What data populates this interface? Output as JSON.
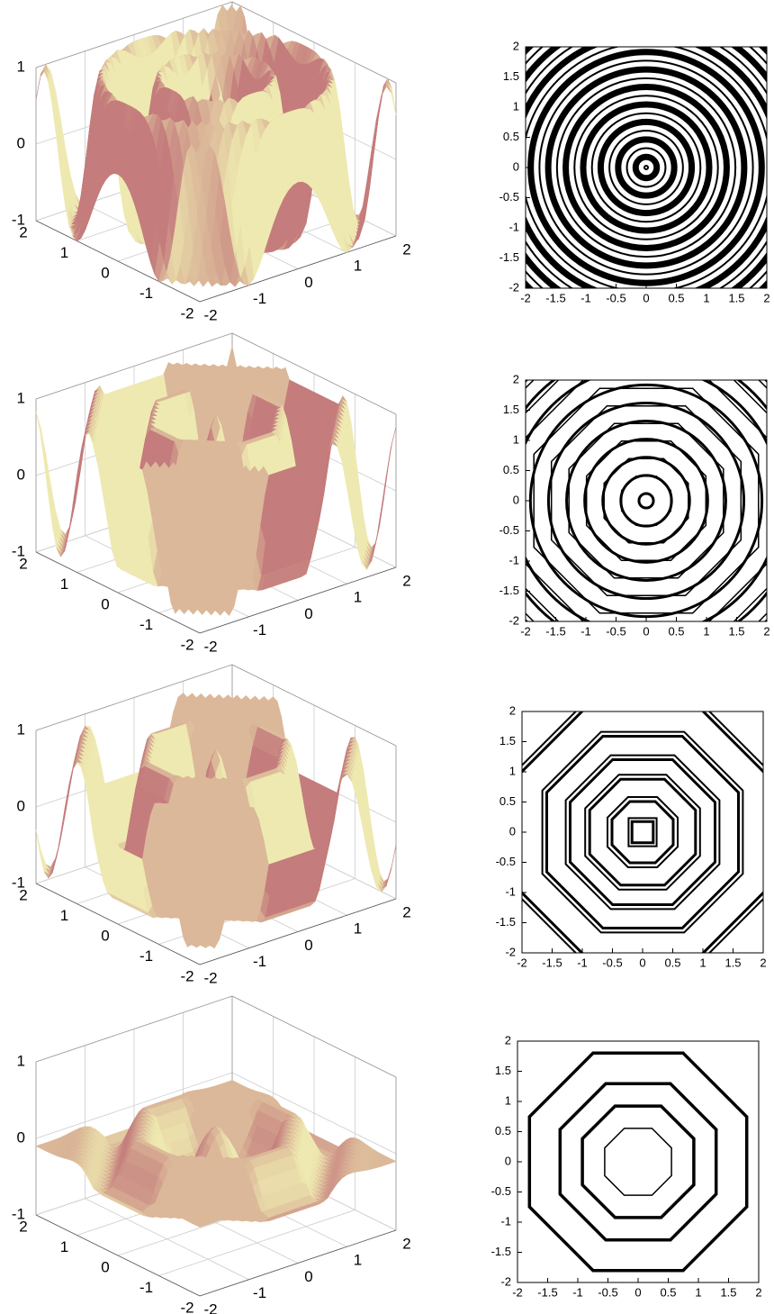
{
  "chart_data": [
    {
      "type": "surface3d",
      "xlim": [
        -2,
        2
      ],
      "ylim": [
        -2,
        2
      ],
      "zlim": [
        -1,
        1
      ],
      "xticks": [
        2,
        1,
        0,
        -1,
        -2
      ],
      "yticks": [
        -2,
        -1,
        0,
        1,
        2
      ],
      "zticks": [
        -1,
        0,
        1
      ],
      "low_color": "#c47c7c",
      "high_color": "#eee9b0"
    },
    {
      "type": "contour",
      "xlim": [
        -2,
        2
      ],
      "ylim": [
        -2,
        2
      ],
      "xticks": [
        -2,
        -1.5,
        -1,
        -0.5,
        0,
        0.5,
        1,
        1.5,
        2
      ],
      "yticks": [
        -2,
        -1.5,
        -1,
        -0.5,
        0,
        0.5,
        1,
        1.5,
        2
      ],
      "color": "#000000"
    },
    {
      "type": "surface3d",
      "xlim": [
        -2,
        2
      ],
      "ylim": [
        -2,
        2
      ],
      "zlim": [
        -1,
        1
      ],
      "xticks": [
        2,
        1,
        0,
        -1,
        -2
      ],
      "yticks": [
        -2,
        -1,
        0,
        1,
        2
      ],
      "zticks": [
        -1,
        0,
        1
      ],
      "low_color": "#c47c7c",
      "high_color": "#eee9b0"
    },
    {
      "type": "contour",
      "xlim": [
        -2,
        2
      ],
      "ylim": [
        -2,
        2
      ],
      "xticks": [
        -2,
        -1.5,
        -1,
        -0.5,
        0,
        0.5,
        1,
        1.5,
        2
      ],
      "yticks": [
        -2,
        -1.5,
        -1,
        -0.5,
        0,
        0.5,
        1,
        1.5,
        2
      ],
      "color": "#000000"
    },
    {
      "type": "surface3d",
      "xlim": [
        -2,
        2
      ],
      "ylim": [
        -2,
        2
      ],
      "zlim": [
        -1,
        1
      ],
      "xticks": [
        2,
        1,
        0,
        -1,
        -2
      ],
      "yticks": [
        -2,
        -1,
        0,
        1,
        2
      ],
      "zticks": [
        -1,
        0,
        1
      ],
      "low_color": "#c47c7c",
      "high_color": "#eee9b0"
    },
    {
      "type": "contour",
      "xlim": [
        -2,
        2
      ],
      "ylim": [
        -2,
        2
      ],
      "xticks": [
        -2,
        -1.5,
        -1,
        -0.5,
        0,
        0.5,
        1,
        1.5,
        2
      ],
      "yticks": [
        -2,
        -1.5,
        -1,
        -0.5,
        0,
        0.5,
        1,
        1.5,
        2
      ],
      "color": "#000000"
    },
    {
      "type": "surface3d",
      "xlim": [
        -2,
        2
      ],
      "ylim": [
        -2,
        2
      ],
      "zlim": [
        -1,
        1
      ],
      "xticks": [
        2,
        1,
        0,
        -1,
        -2
      ],
      "yticks": [
        -2,
        -1,
        0,
        1,
        2
      ],
      "zticks": [
        -1,
        0,
        1
      ],
      "low_color": "#c47c7c",
      "high_color": "#eee9b0"
    },
    {
      "type": "contour",
      "xlim": [
        -2,
        2
      ],
      "ylim": [
        -2,
        2
      ],
      "xticks": [
        -2,
        -1.5,
        -1,
        -0.5,
        0,
        0.5,
        1,
        1.5,
        2
      ],
      "yticks": [
        -2,
        -1.5,
        -1,
        -0.5,
        0,
        0.5,
        1,
        1.5,
        2
      ],
      "color": "#000000"
    }
  ]
}
